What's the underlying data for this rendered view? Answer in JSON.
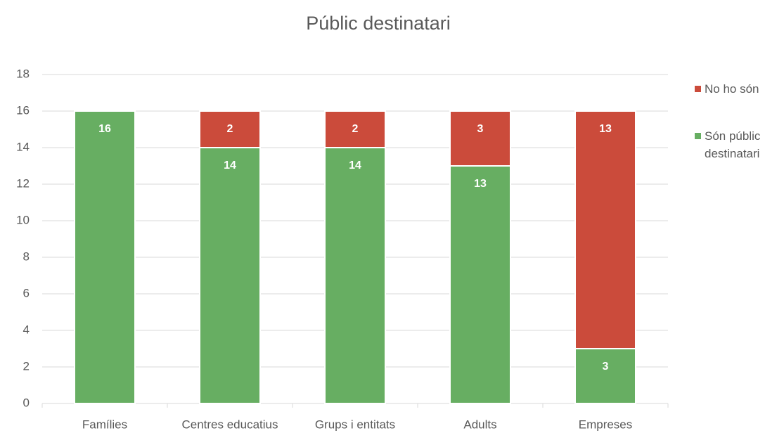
{
  "chart_data": {
    "type": "stacked_bar",
    "title": "Públic destinatari",
    "categories": [
      "Famílies",
      "Centres educatius",
      "Grups i entitats",
      "Adults",
      "Empreses"
    ],
    "series": [
      {
        "name": "Són públic destinatari",
        "color": "#67ae62",
        "values": [
          16,
          14,
          14,
          13,
          3
        ]
      },
      {
        "name": "No ho són",
        "color": "#cb4b3b",
        "values": [
          null,
          2,
          2,
          3,
          13
        ]
      }
    ],
    "ylim": [
      0,
      18
    ],
    "yticks": [
      0,
      2,
      4,
      6,
      8,
      10,
      12,
      14,
      16,
      18
    ],
    "grid": true,
    "legend": "right"
  }
}
